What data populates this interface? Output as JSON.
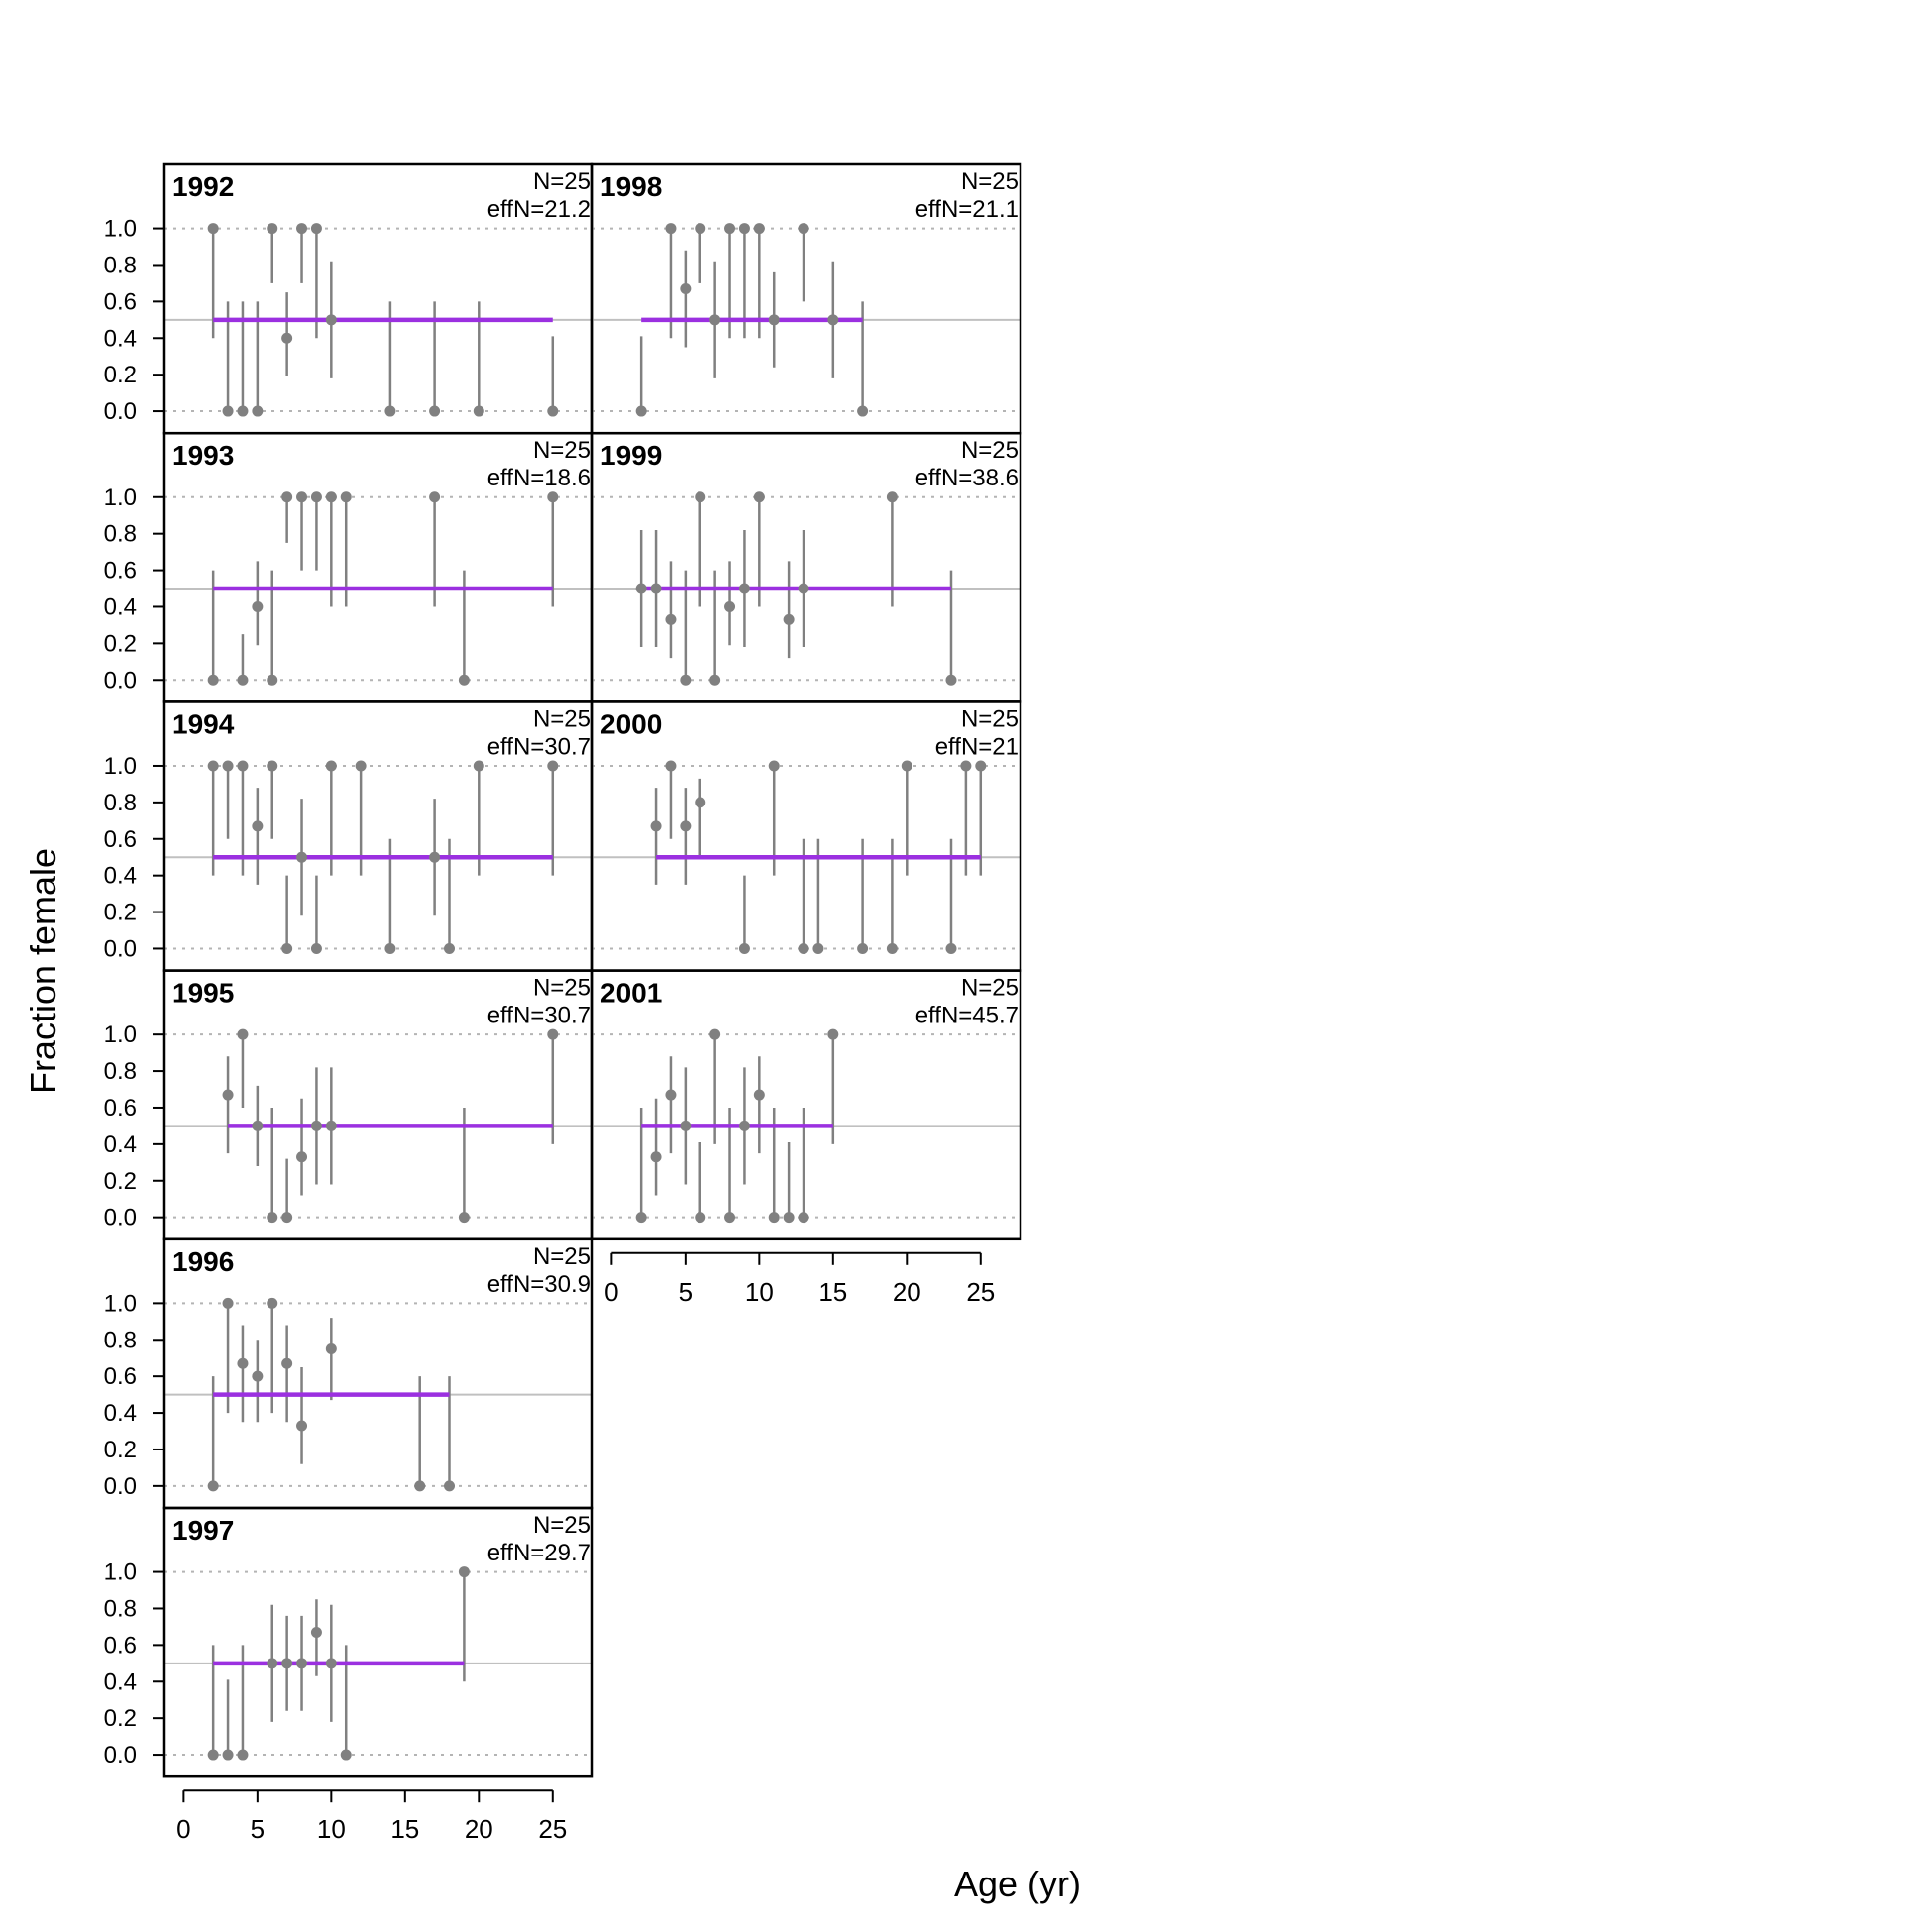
{
  "figure": {
    "ylabel": "Fraction female",
    "xlabel": "Age (yr)"
  },
  "axis": {
    "x_ticks": [
      0,
      5,
      10,
      15,
      20,
      25
    ],
    "y_ticks": [
      "0.0",
      "0.2",
      "0.4",
      "0.6",
      "0.8",
      "1.0"
    ],
    "xlim": [
      -1.3,
      27.7
    ],
    "ylim": [
      -0.12,
      1.35
    ]
  },
  "colors": {
    "observed": "#808080",
    "expected": "#9B30E0",
    "reference_line": "#C0C0C0",
    "grid": "#B4B4B4",
    "frame": "#000000"
  },
  "chart_data": [
    {
      "type": "scatter",
      "panel": "1992",
      "n_label": "N=25",
      "effn_label": "effN=21.2",
      "col": 0,
      "row": 0,
      "x": [
        2,
        3,
        4,
        5,
        6,
        7,
        8,
        9,
        10,
        14,
        17,
        20,
        25
      ],
      "y": [
        1,
        0,
        0,
        0,
        1,
        0.4,
        1,
        1,
        0.5,
        0,
        0,
        0,
        0
      ],
      "lo": [
        0.4,
        0,
        0,
        0,
        0.7,
        0.19,
        0.7,
        0.4,
        0.18,
        0,
        0,
        0,
        0
      ],
      "hi": [
        1,
        0.6,
        0.6,
        0.6,
        1,
        0.65,
        1,
        1,
        0.82,
        0.6,
        0.6,
        0.6,
        0.41
      ],
      "expected": {
        "x": [
          2,
          25
        ],
        "y": 0.5
      }
    },
    {
      "type": "scatter",
      "panel": "1993",
      "n_label": "N=25",
      "effn_label": "effN=18.6",
      "col": 0,
      "row": 1,
      "x": [
        2,
        4,
        5,
        6,
        7,
        8,
        9,
        10,
        11,
        17,
        19,
        25
      ],
      "y": [
        0,
        0,
        0.4,
        0,
        1,
        1,
        1,
        1,
        1,
        1,
        0,
        1
      ],
      "lo": [
        0,
        0,
        0.19,
        0,
        0.75,
        0.6,
        0.6,
        0.4,
        0.4,
        0.4,
        0,
        0.4
      ],
      "hi": [
        0.6,
        0.25,
        0.65,
        0.6,
        1,
        1,
        1,
        1,
        1,
        1,
        0.6,
        1
      ],
      "expected": {
        "x": [
          2,
          25
        ],
        "y": 0.5
      }
    },
    {
      "type": "scatter",
      "panel": "1994",
      "n_label": "N=25",
      "effn_label": "effN=30.7",
      "col": 0,
      "row": 2,
      "x": [
        2,
        3,
        4,
        5,
        6,
        7,
        8,
        9,
        10,
        12,
        14,
        17,
        18,
        20,
        25
      ],
      "y": [
        1,
        1,
        1,
        0.67,
        1,
        0,
        0.5,
        0,
        1,
        1,
        0,
        0.5,
        0,
        1,
        1
      ],
      "lo": [
        0.4,
        0.6,
        0.4,
        0.35,
        0.6,
        0,
        0.18,
        0,
        0.4,
        0.4,
        0,
        0.18,
        0,
        0.4,
        0.4
      ],
      "hi": [
        1,
        1,
        1,
        0.88,
        1,
        0.4,
        0.82,
        0.4,
        1,
        1,
        0.6,
        0.82,
        0.6,
        1,
        1
      ],
      "expected": {
        "x": [
          2,
          25
        ],
        "y": 0.5
      }
    },
    {
      "type": "scatter",
      "panel": "1995",
      "n_label": "N=25",
      "effn_label": "effN=30.7",
      "col": 0,
      "row": 3,
      "x": [
        3,
        4,
        5,
        6,
        7,
        8,
        9,
        10,
        19,
        25
      ],
      "y": [
        0.67,
        1,
        0.5,
        0,
        0,
        0.33,
        0.5,
        0.5,
        0,
        1
      ],
      "lo": [
        0.35,
        0.6,
        0.28,
        0,
        0,
        0.12,
        0.18,
        0.18,
        0,
        0.4
      ],
      "hi": [
        0.88,
        1,
        0.72,
        0.6,
        0.32,
        0.65,
        0.82,
        0.82,
        0.6,
        1
      ],
      "expected": {
        "x": [
          3,
          25
        ],
        "y": 0.5
      }
    },
    {
      "type": "scatter",
      "panel": "1996",
      "n_label": "N=25",
      "effn_label": "effN=30.9",
      "col": 0,
      "row": 4,
      "x": [
        2,
        3,
        4,
        5,
        6,
        7,
        8,
        10,
        16,
        18
      ],
      "y": [
        0,
        1,
        0.67,
        0.6,
        1,
        0.67,
        0.33,
        0.75,
        0,
        0
      ],
      "lo": [
        0,
        0.4,
        0.35,
        0.35,
        0.4,
        0.35,
        0.12,
        0.47,
        0,
        0
      ],
      "hi": [
        0.6,
        1,
        0.88,
        0.8,
        1,
        0.88,
        0.65,
        0.92,
        0.6,
        0.6
      ],
      "expected": {
        "x": [
          2,
          18
        ],
        "y": 0.5
      }
    },
    {
      "type": "scatter",
      "panel": "1997",
      "n_label": "N=25",
      "effn_label": "effN=29.7",
      "col": 0,
      "row": 5,
      "x": [
        2,
        3,
        4,
        6,
        7,
        8,
        9,
        10,
        11,
        19
      ],
      "y": [
        0,
        0,
        0,
        0.5,
        0.5,
        0.5,
        0.67,
        0.5,
        0,
        1
      ],
      "lo": [
        0,
        0,
        0,
        0.18,
        0.24,
        0.24,
        0.43,
        0.18,
        0,
        0.4
      ],
      "hi": [
        0.6,
        0.41,
        0.6,
        0.82,
        0.76,
        0.76,
        0.85,
        0.82,
        0.6,
        1
      ],
      "expected": {
        "x": [
          2,
          19
        ],
        "y": 0.5
      }
    },
    {
      "type": "scatter",
      "panel": "1998",
      "n_label": "N=25",
      "effn_label": "effN=21.1",
      "col": 1,
      "row": 0,
      "x": [
        2,
        4,
        5,
        6,
        7,
        8,
        9,
        10,
        11,
        13,
        15,
        17
      ],
      "y": [
        0,
        1,
        0.67,
        1,
        0.5,
        1,
        1,
        1,
        0.5,
        1,
        0.5,
        0
      ],
      "lo": [
        0,
        0.4,
        0.35,
        0.7,
        0.18,
        0.4,
        0.4,
        0.4,
        0.24,
        0.6,
        0.18,
        0
      ],
      "hi": [
        0.41,
        1,
        0.88,
        1,
        0.82,
        1,
        1,
        1,
        0.76,
        1,
        0.82,
        0.6
      ],
      "expected": {
        "x": [
          2,
          17
        ],
        "y": 0.5
      }
    },
    {
      "type": "scatter",
      "panel": "1999",
      "n_label": "N=25",
      "effn_label": "effN=38.6",
      "col": 1,
      "row": 1,
      "x": [
        2,
        3,
        4,
        5,
        6,
        7,
        8,
        9,
        10,
        12,
        13,
        19,
        23
      ],
      "y": [
        0.5,
        0.5,
        0.33,
        0,
        1,
        0,
        0.4,
        0.5,
        1,
        0.33,
        0.5,
        1,
        0
      ],
      "lo": [
        0.18,
        0.18,
        0.12,
        0,
        0.4,
        0,
        0.19,
        0.18,
        0.4,
        0.12,
        0.18,
        0.4,
        0
      ],
      "hi": [
        0.82,
        0.82,
        0.65,
        0.6,
        1,
        0.6,
        0.65,
        0.82,
        1,
        0.65,
        0.82,
        1,
        0.6
      ],
      "expected": {
        "x": [
          2,
          23
        ],
        "y": 0.5
      }
    },
    {
      "type": "scatter",
      "panel": "2000",
      "n_label": "N=25",
      "effn_label": "effN=21",
      "col": 1,
      "row": 2,
      "x": [
        3,
        4,
        5,
        6,
        9,
        11,
        13,
        14,
        17,
        19,
        20,
        23,
        24,
        25
      ],
      "y": [
        0.67,
        1,
        0.67,
        0.8,
        0,
        1,
        0,
        0,
        0,
        0,
        1,
        0,
        1,
        1
      ],
      "lo": [
        0.35,
        0.6,
        0.35,
        0.5,
        0,
        0.4,
        0,
        0,
        0,
        0,
        0.4,
        0,
        0.4,
        0.4
      ],
      "hi": [
        0.88,
        1,
        0.88,
        0.93,
        0.4,
        1,
        0.6,
        0.6,
        0.6,
        0.6,
        1,
        0.6,
        1,
        1
      ],
      "expected": {
        "x": [
          3,
          25
        ],
        "y": 0.5
      }
    },
    {
      "type": "scatter",
      "panel": "2001",
      "n_label": "N=25",
      "effn_label": "effN=45.7",
      "col": 1,
      "row": 3,
      "x": [
        2,
        3,
        4,
        5,
        6,
        7,
        8,
        9,
        10,
        11,
        12,
        13,
        15
      ],
      "y": [
        0,
        0.33,
        0.67,
        0.5,
        0,
        1,
        0,
        0.5,
        0.67,
        0,
        0,
        0,
        1
      ],
      "lo": [
        0,
        0.12,
        0.35,
        0.18,
        0,
        0.4,
        0,
        0.18,
        0.35,
        0,
        0,
        0,
        0.4
      ],
      "hi": [
        0.6,
        0.65,
        0.88,
        0.82,
        0.41,
        1,
        0.6,
        0.82,
        0.88,
        0.6,
        0.41,
        0.6,
        1
      ],
      "expected": {
        "x": [
          2,
          15
        ],
        "y": 0.5
      }
    }
  ]
}
